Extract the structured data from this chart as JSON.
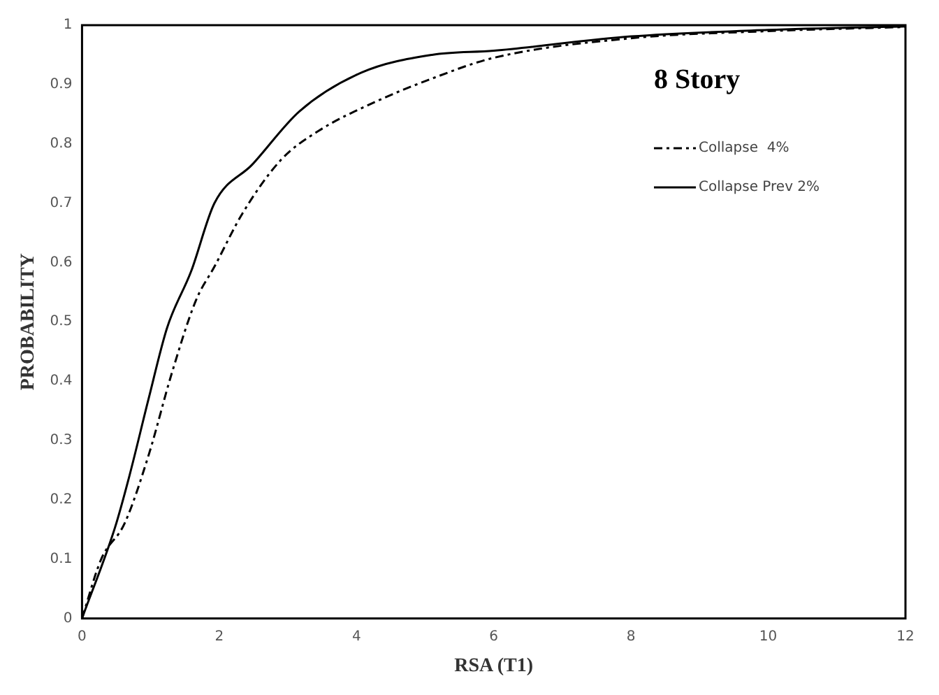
{
  "chart_data": {
    "type": "line",
    "xlabel": "RSA (T1)",
    "ylabel": "PROBABILITY",
    "legend_title": "8 Story",
    "legend": "top right",
    "grid": false,
    "marker": "none",
    "xlim": [
      0,
      12
    ],
    "xticks": [
      0,
      2,
      4,
      6,
      8,
      10,
      12
    ],
    "ylim": [
      0,
      1
    ],
    "yticks": [
      0,
      0.1,
      0.2,
      0.3,
      0.4,
      0.5,
      0.6,
      0.7,
      0.8,
      0.9,
      1
    ],
    "series": [
      {
        "name": "Collapse  4%",
        "color": "#000000",
        "line_style": "dashed",
        "x": [
          0,
          0.28,
          0.62,
          0.97,
          1.31,
          1.66,
          1.93,
          2.34,
          2.9,
          3.45,
          4.28,
          5.1,
          6,
          8,
          10,
          12
        ],
        "values": [
          0,
          0.1,
          0.16,
          0.275,
          0.414,
          0.536,
          0.593,
          0.683,
          0.773,
          0.822,
          0.871,
          0.91,
          0.945,
          0.978,
          0.99,
          0.997
        ]
      },
      {
        "name": "Collapse Prev 2%",
        "color": "#000000",
        "line_style": "solid",
        "x": [
          0,
          0.48,
          0.69,
          0.97,
          1.24,
          1.59,
          1.93,
          2.48,
          3.17,
          4.07,
          5.1,
          6,
          8,
          10,
          12
        ],
        "values": [
          0,
          0.153,
          0.24,
          0.37,
          0.49,
          0.585,
          0.7,
          0.765,
          0.855,
          0.92,
          0.95,
          0.957,
          0.981,
          0.992,
          0.998
        ]
      }
    ]
  }
}
